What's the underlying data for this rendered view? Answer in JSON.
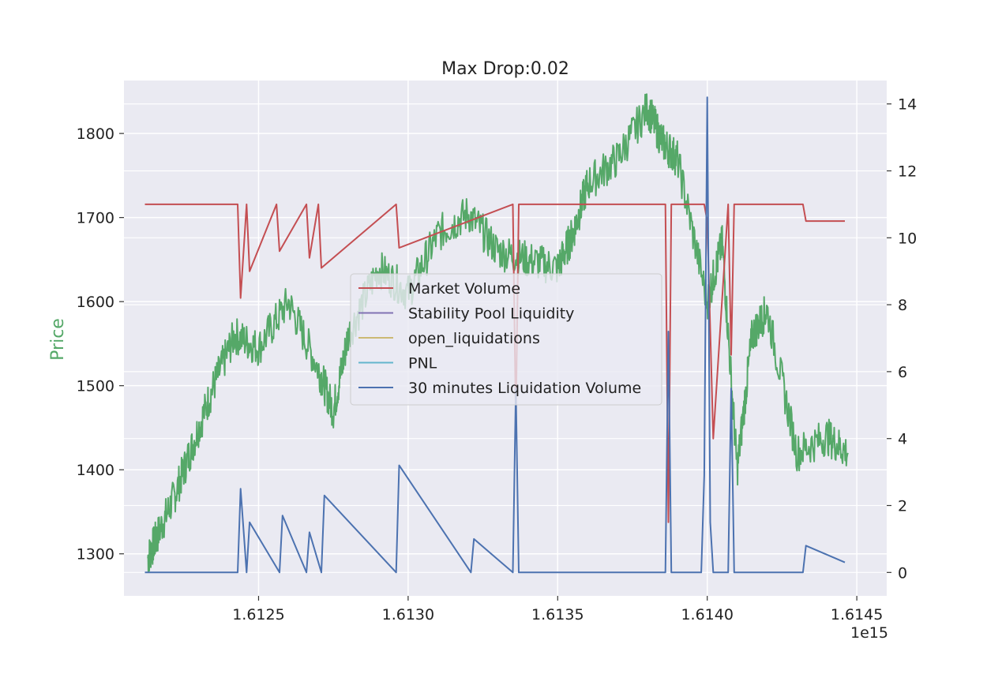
{
  "chart_data": {
    "type": "line",
    "title": "Max Drop:0.02",
    "xlabel": "",
    "ylabel": "Price",
    "y2label": "",
    "x_offset_text": "1e15",
    "x_ticks": [
      "1.6125",
      "1.6130",
      "1.6135",
      "1.6140",
      "1.6145"
    ],
    "x_tick_values": [
      1.6125,
      1.613,
      1.6135,
      1.614,
      1.6145
    ],
    "y_ticks": [
      1300,
      1400,
      1500,
      1600,
      1700,
      1800
    ],
    "y2_ticks": [
      0,
      2,
      4,
      6,
      8,
      10,
      12,
      14
    ],
    "xlim": [
      1.61205,
      1.6146
    ],
    "ylim": [
      1250,
      1863
    ],
    "y2lim": [
      -0.7,
      14.7
    ],
    "grid": true,
    "legend_position": "center",
    "colors": {
      "background": "#EAEAF2",
      "grid": "#FFFFFF",
      "price": "#55A868",
      "market_volume": "#C44E52",
      "stability_pool": "#8172B3",
      "open_liquidations": "#CCB974",
      "pnl": "#64B5CD",
      "liquidation_volume": "#4C72B0",
      "ylabel": "#55A868"
    },
    "series": [
      {
        "name": "price",
        "axis": "left",
        "x": [
          1.61213,
          1.61216,
          1.61222,
          1.61228,
          1.61235,
          1.61242,
          1.6125,
          1.6126,
          1.6127,
          1.61275,
          1.6128,
          1.6129,
          1.613,
          1.6131,
          1.6132,
          1.6133,
          1.6134,
          1.6135,
          1.61355,
          1.6136,
          1.6137,
          1.6138,
          1.61385,
          1.6139,
          1.614,
          1.61405,
          1.6141,
          1.61415,
          1.6142,
          1.6143,
          1.6144,
          1.61447
        ],
        "values": [
          1295,
          1320,
          1370,
          1430,
          1500,
          1560,
          1545,
          1600,
          1520,
          1470,
          1560,
          1640,
          1610,
          1680,
          1705,
          1660,
          1650,
          1640,
          1680,
          1740,
          1770,
          1830,
          1790,
          1770,
          1600,
          1670,
          1400,
          1560,
          1590,
          1420,
          1440,
          1420
        ]
      },
      {
        "name": "Market Volume",
        "axis": "right",
        "x": [
          1.61212,
          1.61243,
          1.61244,
          1.61246,
          1.61247,
          1.61256,
          1.61257,
          1.61266,
          1.61267,
          1.6127,
          1.61271,
          1.61296,
          1.61297,
          1.61335,
          1.61336,
          1.61337,
          1.61386,
          1.61387,
          1.61388,
          1.61399,
          1.614,
          1.61402,
          1.61407,
          1.61408,
          1.61409,
          1.61432,
          1.61433,
          1.61446
        ],
        "values": [
          11,
          11,
          8.2,
          11,
          9.0,
          11,
          9.6,
          11,
          9.4,
          11,
          9.1,
          11,
          9.7,
          11,
          4.5,
          11,
          11,
          1.5,
          11,
          11,
          10.5,
          4.0,
          11,
          6.5,
          11,
          11,
          10.5,
          10.5
        ]
      },
      {
        "name": "Stability Pool Liquidity",
        "axis": "right",
        "x": [],
        "values": []
      },
      {
        "name": "open_liquidations",
        "axis": "right",
        "x": [],
        "values": []
      },
      {
        "name": "PNL",
        "axis": "right",
        "x": [],
        "values": []
      },
      {
        "name": "30 minutes Liquidation Volume",
        "axis": "right",
        "x": [
          1.61212,
          1.61243,
          1.61244,
          1.61246,
          1.61247,
          1.61257,
          1.61258,
          1.61266,
          1.61267,
          1.61271,
          1.61272,
          1.61296,
          1.61297,
          1.61321,
          1.61322,
          1.61335,
          1.61336,
          1.61337,
          1.61386,
          1.61387,
          1.61388,
          1.61398,
          1.61399,
          1.614,
          1.61401,
          1.61402,
          1.61407,
          1.61408,
          1.61409,
          1.61432,
          1.61433,
          1.61446
        ],
        "values": [
          0,
          0,
          2.5,
          0,
          1.5,
          0,
          1.7,
          0,
          1.2,
          0,
          2.3,
          0,
          3.2,
          0,
          1.0,
          0,
          5.5,
          0,
          0,
          7.2,
          0,
          0,
          2.9,
          14.2,
          1.5,
          0,
          0,
          5.5,
          0,
          0,
          0.8,
          0.3
        ]
      }
    ]
  }
}
